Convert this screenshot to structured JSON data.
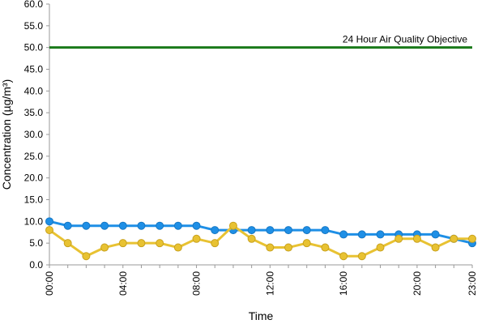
{
  "chart_data": {
    "type": "line",
    "xlabel": "Time",
    "ylabel": "Concentration (µg/m³)",
    "ylim": [
      0,
      60
    ],
    "yticks": [
      "0.0",
      "5.0",
      "10.0",
      "15.0",
      "20.0",
      "25.0",
      "30.0",
      "35.0",
      "40.0",
      "45.0",
      "50.0",
      "55.0",
      "60.0"
    ],
    "x": [
      "00:00",
      "01:00",
      "02:00",
      "03:00",
      "04:00",
      "05:00",
      "06:00",
      "07:00",
      "08:00",
      "09:00",
      "10:00",
      "11:00",
      "12:00",
      "13:00",
      "14:00",
      "15:00",
      "16:00",
      "17:00",
      "18:00",
      "19:00",
      "20:00",
      "21:00",
      "22:00",
      "23:00"
    ],
    "xtick_labels": [
      "00:00",
      "04:00",
      "08:00",
      "12:00",
      "16:00",
      "20:00",
      "23:00"
    ],
    "series": [
      {
        "color": "#1E8FE6",
        "values": [
          10.0,
          9.0,
          9.0,
          9.0,
          9.0,
          9.0,
          9.0,
          9.0,
          9.0,
          8.0,
          8.0,
          8.0,
          8.0,
          8.0,
          8.0,
          8.0,
          7.0,
          7.0,
          7.0,
          7.0,
          7.0,
          7.0,
          6.0,
          5.0
        ]
      },
      {
        "color": "#E8C232",
        "values": [
          8.0,
          5.0,
          2.0,
          4.0,
          5.0,
          5.0,
          5.0,
          4.0,
          6.0,
          5.0,
          9.0,
          6.0,
          4.0,
          4.0,
          5.0,
          4.0,
          2.0,
          2.0,
          4.0,
          6.0,
          6.0,
          4.0,
          6.0,
          6.0
        ]
      }
    ],
    "reference_line": {
      "value": 50.0,
      "label": "24 Hour Air Quality Objective",
      "color": "#1A7A1A"
    },
    "grid": false
  }
}
